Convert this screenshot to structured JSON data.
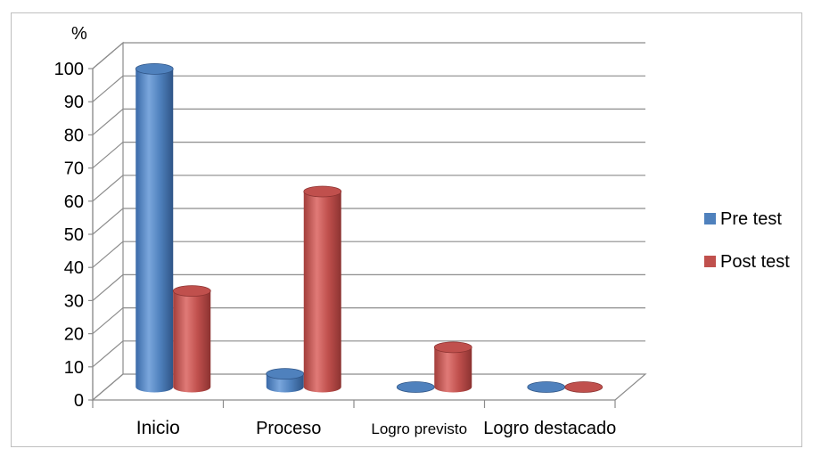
{
  "chart_data": {
    "type": "bar",
    "style": "3d-cylinder",
    "unit_label": "%",
    "categories": [
      "Inicio",
      "Proceso",
      "Logro previsto",
      "Logro destacado"
    ],
    "series": [
      {
        "name": "Pre test",
        "values": [
          96,
          4,
          0,
          0
        ],
        "color": "#4f81bd"
      },
      {
        "name": "Post test",
        "values": [
          29,
          59,
          12,
          0
        ],
        "color": "#c0504d"
      }
    ],
    "ylim": [
      0,
      100
    ],
    "yticks": [
      0,
      10,
      20,
      30,
      40,
      50,
      60,
      70,
      80,
      90,
      100
    ],
    "grid": true,
    "legend_position": "right"
  }
}
